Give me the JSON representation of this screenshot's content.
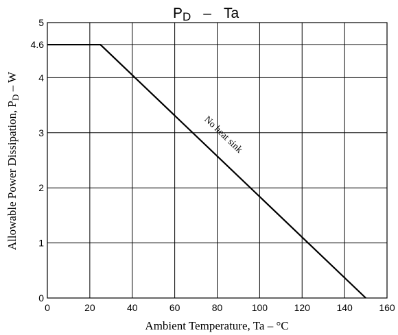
{
  "chart_data": {
    "type": "line",
    "title": {
      "main": "P",
      "sub": "D",
      "dash": "–",
      "tail": "Ta"
    },
    "xlabel": "Ambient Temperature, Ta  –  °C",
    "ylabel": {
      "main": "Allowable Power Dissipation, P",
      "sub": "D",
      "tail": "  –  W"
    },
    "xlim": [
      0,
      160
    ],
    "ylim": [
      0,
      5
    ],
    "x_ticks": [
      0,
      20,
      40,
      60,
      80,
      100,
      120,
      140,
      160
    ],
    "x_tick_labels": [
      "0",
      "20",
      "40",
      "60",
      "80",
      "100",
      "120",
      "140",
      "160"
    ],
    "y_ticks": [
      0,
      1,
      2,
      3,
      4,
      4.6,
      5
    ],
    "y_tick_labels": [
      "0",
      "1",
      "2",
      "3",
      "4",
      "4.6",
      "5"
    ],
    "grid": true,
    "grid_x": [
      20,
      40,
      60,
      80,
      100,
      120,
      140
    ],
    "grid_y": [
      1,
      2,
      3,
      4,
      4.6
    ],
    "series": [
      {
        "x": [
          0,
          25,
          150
        ],
        "y": [
          4.6,
          4.6,
          0
        ]
      }
    ],
    "annotations": [
      {
        "text": "No heat sink",
        "x": 82,
        "y": 2.93,
        "rotate_along_series": true
      }
    ]
  },
  "colors": {
    "line": "#000000",
    "grid": "#000000",
    "background": "#ffffff"
  }
}
